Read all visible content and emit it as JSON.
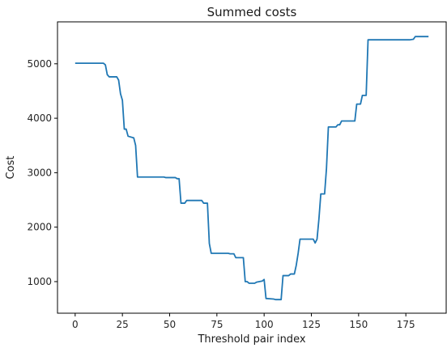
{
  "chart_data": {
    "type": "line",
    "title": "Summed costs",
    "xlabel": "Threshold pair index",
    "ylabel": "Cost",
    "xlim": [
      -9.35,
      196.35
    ],
    "ylim": [
      420,
      5770
    ],
    "xticks": [
      0,
      25,
      50,
      75,
      100,
      125,
      150,
      175
    ],
    "yticks": [
      1000,
      2000,
      3000,
      4000,
      5000
    ],
    "grid": false,
    "legend": "none",
    "series": [
      {
        "color": "#1f77b4",
        "points": [
          [
            0,
            5010
          ],
          [
            15,
            5010
          ],
          [
            16,
            4980
          ],
          [
            17,
            4800
          ],
          [
            18,
            4760
          ],
          [
            22,
            4760
          ],
          [
            23,
            4700
          ],
          [
            24,
            4450
          ],
          [
            25,
            4330
          ],
          [
            26,
            3800
          ],
          [
            27,
            3800
          ],
          [
            28,
            3670
          ],
          [
            31,
            3640
          ],
          [
            32,
            3500
          ],
          [
            33,
            2920
          ],
          [
            47,
            2920
          ],
          [
            48,
            2910
          ],
          [
            53,
            2910
          ],
          [
            54,
            2890
          ],
          [
            55,
            2890
          ],
          [
            56,
            2440
          ],
          [
            58,
            2440
          ],
          [
            59,
            2490
          ],
          [
            67,
            2490
          ],
          [
            68,
            2440
          ],
          [
            70,
            2440
          ],
          [
            71,
            1700
          ],
          [
            72,
            1520
          ],
          [
            81,
            1520
          ],
          [
            82,
            1510
          ],
          [
            84,
            1510
          ],
          [
            85,
            1440
          ],
          [
            88,
            1440
          ],
          [
            89,
            1440
          ],
          [
            90,
            1000
          ],
          [
            91,
            1000
          ],
          [
            92,
            970
          ],
          [
            95,
            970
          ],
          [
            96,
            990
          ],
          [
            99,
            1010
          ],
          [
            100,
            1040
          ],
          [
            101,
            690
          ],
          [
            105,
            680
          ],
          [
            106,
            670
          ],
          [
            109,
            670
          ],
          [
            110,
            1110
          ],
          [
            113,
            1110
          ],
          [
            114,
            1140
          ],
          [
            116,
            1140
          ],
          [
            117,
            1300
          ],
          [
            118,
            1520
          ],
          [
            119,
            1780
          ],
          [
            126,
            1780
          ],
          [
            127,
            1710
          ],
          [
            128,
            1780
          ],
          [
            129,
            2150
          ],
          [
            130,
            2610
          ],
          [
            132,
            2610
          ],
          [
            133,
            3080
          ],
          [
            134,
            3840
          ],
          [
            138,
            3840
          ],
          [
            139,
            3880
          ],
          [
            140,
            3880
          ],
          [
            141,
            3950
          ],
          [
            148,
            3950
          ],
          [
            149,
            4260
          ],
          [
            151,
            4260
          ],
          [
            152,
            4420
          ],
          [
            154,
            4420
          ],
          [
            155,
            5440
          ],
          [
            177,
            5440
          ],
          [
            179,
            5450
          ],
          [
            180,
            5500
          ],
          [
            187,
            5500
          ]
        ]
      }
    ]
  }
}
